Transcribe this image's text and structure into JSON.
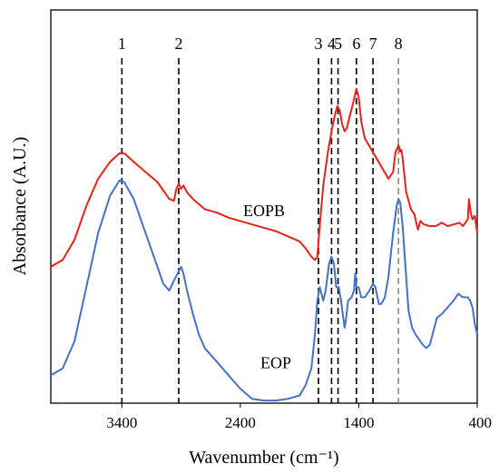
{
  "chart_data": {
    "type": "line",
    "xlabel": "Wavenumber (cm⁻¹)",
    "ylabel": "Absorbance (A.U.)",
    "xlim": [
      4000,
      400
    ],
    "x_reversed": true,
    "ylim": [
      0,
      1
    ],
    "x_ticks": [
      {
        "value": 3400,
        "label": "3400"
      },
      {
        "value": 2400,
        "label": "2400"
      },
      {
        "value": 1400,
        "label": "1400"
      },
      {
        "value": 400,
        "label": "400"
      }
    ],
    "peaks": [
      {
        "label": "1",
        "wavenumber": 3400,
        "color": "#000000"
      },
      {
        "label": "2",
        "wavenumber": 2920,
        "color": "#000000"
      },
      {
        "label": "3",
        "wavenumber": 1740,
        "color": "#000000"
      },
      {
        "label": "4",
        "wavenumber": 1630,
        "color": "#000000"
      },
      {
        "label": "5",
        "wavenumber": 1575,
        "color": "#000000"
      },
      {
        "label": "6",
        "wavenumber": 1420,
        "color": "#000000"
      },
      {
        "label": "7",
        "wavenumber": 1280,
        "color": "#000000"
      },
      {
        "label": "8",
        "wavenumber": 1065,
        "color": "#888888"
      }
    ],
    "series": [
      {
        "name": "EOPB",
        "color": "#e8221b",
        "label_at": [
          2200,
          0.55
        ],
        "points": [
          [
            4000,
            0.4
          ],
          [
            3900,
            0.42
          ],
          [
            3800,
            0.48
          ],
          [
            3700,
            0.58
          ],
          [
            3600,
            0.66
          ],
          [
            3500,
            0.71
          ],
          [
            3420,
            0.735
          ],
          [
            3380,
            0.735
          ],
          [
            3300,
            0.71
          ],
          [
            3200,
            0.68
          ],
          [
            3100,
            0.65
          ],
          [
            3000,
            0.6
          ],
          [
            2960,
            0.595
          ],
          [
            2940,
            0.63
          ],
          [
            2920,
            0.645
          ],
          [
            2900,
            0.63
          ],
          [
            2880,
            0.64
          ],
          [
            2850,
            0.62
          ],
          [
            2800,
            0.6
          ],
          [
            2700,
            0.57
          ],
          [
            2600,
            0.56
          ],
          [
            2500,
            0.545
          ],
          [
            2400,
            0.535
          ],
          [
            2300,
            0.525
          ],
          [
            2200,
            0.515
          ],
          [
            2100,
            0.505
          ],
          [
            2000,
            0.49
          ],
          [
            1900,
            0.475
          ],
          [
            1850,
            0.455
          ],
          [
            1800,
            0.43
          ],
          [
            1770,
            0.42
          ],
          [
            1750,
            0.43
          ],
          [
            1730,
            0.52
          ],
          [
            1700,
            0.64
          ],
          [
            1660,
            0.74
          ],
          [
            1630,
            0.8
          ],
          [
            1600,
            0.85
          ],
          [
            1580,
            0.875
          ],
          [
            1560,
            0.86
          ],
          [
            1540,
            0.82
          ],
          [
            1520,
            0.8
          ],
          [
            1500,
            0.81
          ],
          [
            1480,
            0.84
          ],
          [
            1450,
            0.88
          ],
          [
            1430,
            0.91
          ],
          [
            1420,
            0.925
          ],
          [
            1400,
            0.9
          ],
          [
            1380,
            0.83
          ],
          [
            1350,
            0.78
          ],
          [
            1300,
            0.75
          ],
          [
            1250,
            0.72
          ],
          [
            1200,
            0.69
          ],
          [
            1150,
            0.66
          ],
          [
            1110,
            0.68
          ],
          [
            1090,
            0.74
          ],
          [
            1075,
            0.75
          ],
          [
            1065,
            0.76
          ],
          [
            1050,
            0.74
          ],
          [
            1040,
            0.745
          ],
          [
            1030,
            0.72
          ],
          [
            1000,
            0.62
          ],
          [
            960,
            0.57
          ],
          [
            930,
            0.555
          ],
          [
            915,
            0.53
          ],
          [
            900,
            0.51
          ],
          [
            880,
            0.535
          ],
          [
            850,
            0.525
          ],
          [
            800,
            0.52
          ],
          [
            750,
            0.52
          ],
          [
            700,
            0.53
          ],
          [
            650,
            0.52
          ],
          [
            600,
            0.525
          ],
          [
            550,
            0.53
          ],
          [
            520,
            0.52
          ],
          [
            480,
            0.54
          ],
          [
            470,
            0.6
          ],
          [
            455,
            0.56
          ],
          [
            440,
            0.54
          ],
          [
            420,
            0.55
          ],
          [
            400,
            0.5
          ]
        ]
      },
      {
        "name": "EOP",
        "color": "#4472c4",
        "label_at": [
          2100,
          0.1
        ],
        "points": [
          [
            4000,
            0.08
          ],
          [
            3900,
            0.1
          ],
          [
            3800,
            0.18
          ],
          [
            3700,
            0.34
          ],
          [
            3600,
            0.5
          ],
          [
            3500,
            0.61
          ],
          [
            3420,
            0.655
          ],
          [
            3380,
            0.65
          ],
          [
            3300,
            0.6
          ],
          [
            3200,
            0.5
          ],
          [
            3100,
            0.4
          ],
          [
            3050,
            0.35
          ],
          [
            3000,
            0.33
          ],
          [
            2960,
            0.36
          ],
          [
            2930,
            0.38
          ],
          [
            2900,
            0.4
          ],
          [
            2880,
            0.38
          ],
          [
            2850,
            0.33
          ],
          [
            2800,
            0.26
          ],
          [
            2750,
            0.2
          ],
          [
            2700,
            0.16
          ],
          [
            2600,
            0.12
          ],
          [
            2500,
            0.08
          ],
          [
            2400,
            0.04
          ],
          [
            2300,
            0.01
          ],
          [
            2200,
            0.005
          ],
          [
            2100,
            0.005
          ],
          [
            2000,
            0.01
          ],
          [
            1900,
            0.02
          ],
          [
            1850,
            0.05
          ],
          [
            1800,
            0.1
          ],
          [
            1770,
            0.2
          ],
          [
            1750,
            0.3
          ],
          [
            1730,
            0.34
          ],
          [
            1700,
            0.3
          ],
          [
            1680,
            0.33
          ],
          [
            1650,
            0.41
          ],
          [
            1630,
            0.43
          ],
          [
            1610,
            0.41
          ],
          [
            1590,
            0.34
          ],
          [
            1570,
            0.34
          ],
          [
            1550,
            0.3
          ],
          [
            1520,
            0.22
          ],
          [
            1510,
            0.24
          ],
          [
            1490,
            0.3
          ],
          [
            1460,
            0.31
          ],
          [
            1440,
            0.33
          ],
          [
            1430,
            0.38
          ],
          [
            1420,
            0.34
          ],
          [
            1400,
            0.34
          ],
          [
            1380,
            0.31
          ],
          [
            1350,
            0.31
          ],
          [
            1310,
            0.33
          ],
          [
            1280,
            0.35
          ],
          [
            1260,
            0.34
          ],
          [
            1230,
            0.29
          ],
          [
            1210,
            0.29
          ],
          [
            1180,
            0.31
          ],
          [
            1150,
            0.37
          ],
          [
            1110,
            0.5
          ],
          [
            1080,
            0.58
          ],
          [
            1065,
            0.6
          ],
          [
            1050,
            0.59
          ],
          [
            1030,
            0.52
          ],
          [
            1000,
            0.37
          ],
          [
            980,
            0.27
          ],
          [
            950,
            0.22
          ],
          [
            920,
            0.2
          ],
          [
            900,
            0.19
          ],
          [
            860,
            0.17
          ],
          [
            830,
            0.16
          ],
          [
            800,
            0.17
          ],
          [
            770,
            0.21
          ],
          [
            740,
            0.25
          ],
          [
            700,
            0.26
          ],
          [
            650,
            0.28
          ],
          [
            600,
            0.3
          ],
          [
            560,
            0.32
          ],
          [
            520,
            0.31
          ],
          [
            500,
            0.31
          ],
          [
            480,
            0.31
          ],
          [
            460,
            0.3
          ],
          [
            440,
            0.28
          ],
          [
            420,
            0.23
          ],
          [
            400,
            0.2
          ]
        ]
      }
    ]
  }
}
